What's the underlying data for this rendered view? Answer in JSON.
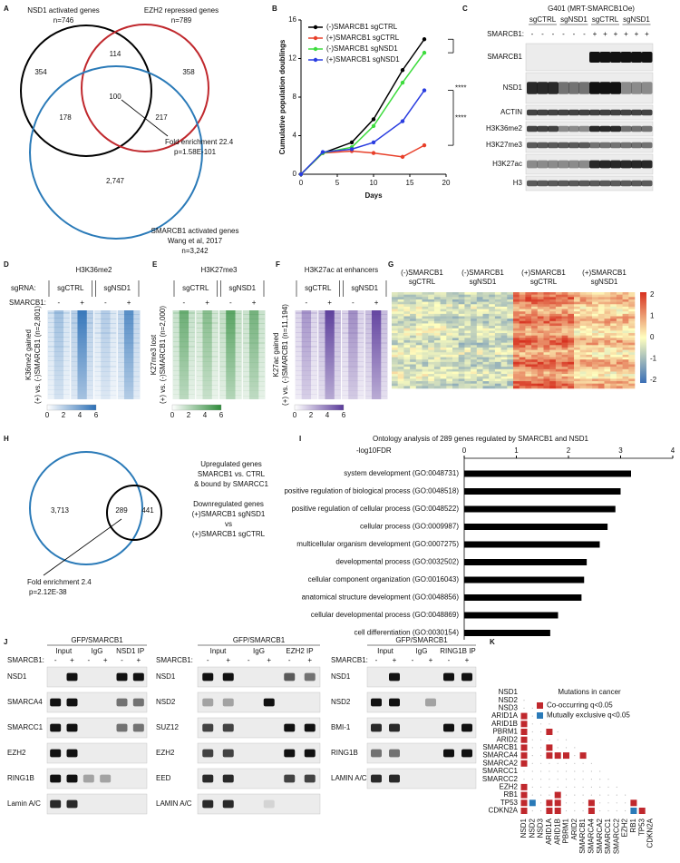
{
  "panels": {
    "A": {
      "label": "A",
      "sets": [
        {
          "name": "NSD1 activated genes",
          "n": "n=746"
        },
        {
          "name": "EZH2 repressed genes",
          "n": "n=789"
        },
        {
          "name": "SMARCB1 activated genes",
          "source": "Wang et al, 2017",
          "n": "n=3,242"
        }
      ],
      "regions": [
        "354",
        "114",
        "358",
        "100",
        "178",
        "217",
        "2,747"
      ],
      "fold": "Fold enrichment 22.4",
      "p": "p=1.58E-101"
    },
    "B": {
      "label": "B",
      "chart_data": {
        "type": "line",
        "x": [
          0,
          3,
          7,
          10,
          14,
          17
        ],
        "series": [
          {
            "name": "(-)SMARCB1 sgCTRL",
            "color": "#000000",
            "values": [
              0,
              2.2,
              3.3,
              5.7,
              10.8,
              14
            ]
          },
          {
            "name": "(+)SMARCB1 sgCTRL",
            "color": "#e8402a",
            "values": [
              0,
              2.2,
              2.4,
              2.2,
              1.8,
              3
            ]
          },
          {
            "name": "(-)SMARCB1 sgNSD1",
            "color": "#3ddc3d",
            "values": [
              0,
              2.2,
              2.8,
              5,
              9.5,
              12.6
            ]
          },
          {
            "name": "(+)SMARCB1 sgNSD1",
            "color": "#2a3de0",
            "values": [
              0,
              2.3,
              2.6,
              3.3,
              5.5,
              8.7
            ]
          }
        ],
        "xlim": [
          0,
          20
        ],
        "xticks": [
          0,
          5,
          10,
          15,
          20
        ],
        "ylim": [
          0,
          16
        ],
        "yticks": [
          0,
          4,
          8,
          12,
          16
        ],
        "xlabel": "Days",
        "ylabel": "Cumulative population doublings",
        "annotations": [
          "****",
          "****"
        ]
      }
    },
    "C": {
      "label": "C",
      "title": "G401 (MRT-SMARCB1Oe)",
      "groups": [
        "sgCTRL",
        "sgNSD1",
        "sgCTRL",
        "sgNSD1"
      ],
      "row_label": "SMARCB1:",
      "lanes": [
        "-",
        "-",
        "-",
        "-",
        "-",
        "-",
        "+",
        "+",
        "+",
        "+",
        "+",
        "+"
      ],
      "blots": [
        "SMARCB1",
        "NSD1",
        "ACTIN",
        "H3K36me2",
        "H3K27me3",
        "H3K27ac",
        "H3"
      ]
    },
    "D": {
      "label": "D",
      "title": "H3K36me2",
      "sgrna_label": "sgRNA:",
      "smarcb1_label": "SMARCB1:",
      "groups": [
        "sgCTRL",
        "sgNSD1"
      ],
      "lanes": [
        "-",
        "+",
        "-",
        "+"
      ],
      "ylabel": [
        "K36me2 gained",
        "(+) vs. (-)SMARCB1 (n=2,801)"
      ],
      "scale": [
        "0",
        "2",
        "4",
        "6"
      ]
    },
    "E": {
      "label": "E",
      "title": "H3K27me3",
      "groups": [
        "sgCTRL",
        "sgNSD1"
      ],
      "lanes": [
        "-",
        "+",
        "-",
        "+"
      ],
      "ylabel": [
        "K27me3 lost",
        "(+) vs. (-)SMARCB1 (n=2,000)"
      ],
      "scale": [
        "0",
        "2",
        "4",
        "6"
      ]
    },
    "F": {
      "label": "F",
      "title": "H3K27ac at enhancers",
      "groups": [
        "sgCTRL",
        "sgNSD1"
      ],
      "lanes": [
        "-",
        "+",
        "-",
        "+"
      ],
      "ylabel": [
        "K27ac gained",
        "(+) vs. (-)SMARCB1 (n=11,194)"
      ],
      "scale": [
        "0",
        "2",
        "4",
        "6"
      ]
    },
    "G": {
      "label": "G",
      "groups": [
        [
          "(-)SMARCB1",
          "sgCTRL"
        ],
        [
          "(-)SMARCB1",
          "sgNSD1"
        ],
        [
          "(+)SMARCB1",
          "sgCTRL"
        ],
        [
          "(+)SMARCB1",
          "sgNSD1"
        ]
      ],
      "scale": [
        "2",
        "1",
        "0",
        "-1",
        "-2"
      ]
    },
    "H": {
      "label": "H",
      "regions": [
        "3,713",
        "289",
        "441"
      ],
      "set1": [
        "Upregulated genes",
        "SMARCB1 vs. CTRL",
        "& bound by SMARCC1"
      ],
      "set2": [
        "Downregulated genes",
        "(+)SMARCB1 sgNSD1",
        "vs",
        "(+)SMARCB1 sgCTRL"
      ],
      "fold": "Fold enrichment 2.4",
      "p": "p=2.12E-38"
    },
    "I": {
      "label": "I",
      "chart_data": {
        "type": "bar",
        "orientation": "horizontal",
        "title": "Ontology analysis of 289 genes regulated by SMARCB1 and NSD1",
        "xlabel": "-log10FDR",
        "categories": [
          "system development (GO:0048731)",
          "positive regulation of biological process (GO:0048518)",
          "positive regulation of cellular process (GO:0048522)",
          "cellular process (GO:0009987)",
          "multicellular organism development (GO:0007275)",
          "developmental process (GO:0032502)",
          "cellular component organization (GO:0016043)",
          "anatomical structure development (GO:0048856)",
          "cellular developmental process (GO:0048869)",
          "cell differentiation (GO:0030154)"
        ],
        "values": [
          3.2,
          3.0,
          2.9,
          2.75,
          2.6,
          2.35,
          2.3,
          2.25,
          1.8,
          1.65
        ],
        "color": "#000000",
        "xlim": [
          0,
          4
        ],
        "xticks": [
          0,
          1,
          2,
          3,
          4
        ]
      }
    },
    "J": {
      "label": "J",
      "blots": [
        {
          "header": "GFP/SMARCB1",
          "row_label": "SMARCB1:",
          "groups": [
            "Input",
            "IgG",
            "NSD1 IP"
          ],
          "lanes": [
            "-",
            "+",
            "-",
            "+",
            "-",
            "+"
          ],
          "rows": [
            "NSD1",
            "SMARCA4",
            "SMARCC1",
            "EZH2",
            "RING1B",
            "Lamin A/C"
          ]
        },
        {
          "header": "GFP/SMARCB1",
          "row_label": "SMARCB1:",
          "groups": [
            "Input",
            "IgG",
            "EZH2 IP"
          ],
          "lanes": [
            "-",
            "+",
            "-",
            "+",
            "-",
            "+"
          ],
          "rows": [
            "NSD1",
            "NSD2",
            "SUZ12",
            "EZH2",
            "EED",
            "LAMIN A/C"
          ]
        },
        {
          "header": "GFP/SMARCB1",
          "row_label": "SMARCB1:",
          "groups": [
            "Input",
            "IgG",
            "RING1B IP"
          ],
          "lanes": [
            "-",
            "+",
            "-",
            "+",
            "-",
            "+"
          ],
          "rows": [
            "NSD1",
            "NSD2",
            "BMI-1",
            "RING1B",
            "LAMIN A/C"
          ]
        }
      ]
    },
    "K": {
      "label": "K",
      "title": "Mutations in cancer",
      "genes": [
        "NSD1",
        "NSD2",
        "NSD3",
        "ARID1A",
        "ARID1B",
        "PBRM1",
        "ARID2",
        "SMARCB1",
        "SMARCA4",
        "SMARCA2",
        "SMARCC1",
        "SMARCC2",
        "EZH2",
        "RB1",
        "TP53",
        "CDKN2A"
      ],
      "legend": [
        {
          "label": "Co-occurring q<0.05",
          "color": "#c0282d",
          "cells": [
            [
              "ARID1A",
              "NSD1"
            ],
            [
              "ARID1B",
              "NSD1"
            ],
            [
              "PBRM1",
              "NSD1"
            ],
            [
              "PBRM1",
              "ARID1A"
            ],
            [
              "ARID2",
              "NSD1"
            ],
            [
              "SMARCB1",
              "NSD1"
            ],
            [
              "SMARCB1",
              "ARID1A"
            ],
            [
              "SMARCA4",
              "NSD1"
            ],
            [
              "SMARCA4",
              "ARID1A"
            ],
            [
              "SMARCA4",
              "ARID1B"
            ],
            [
              "SMARCA4",
              "PBRM1"
            ],
            [
              "SMARCA4",
              "SMARCB1"
            ],
            [
              "SMARCA2",
              "NSD1"
            ],
            [
              "EZH2",
              "NSD1"
            ],
            [
              "RB1",
              "NSD1"
            ],
            [
              "RB1",
              "ARID1B"
            ],
            [
              "TP53",
              "NSD1"
            ],
            [
              "TP53",
              "ARID1A"
            ],
            [
              "TP53",
              "ARID1B"
            ],
            [
              "TP53",
              "SMARCA4"
            ],
            [
              "TP53",
              "RB1"
            ],
            [
              "CDKN2A",
              "NSD1"
            ],
            [
              "CDKN2A",
              "ARID1A"
            ],
            [
              "CDKN2A",
              "ARID1B"
            ],
            [
              "CDKN2A",
              "SMARCA4"
            ],
            [
              "CDKN2A",
              "TP53"
            ]
          ]
        },
        {
          "label": "Mutually exclusive q<0.05",
          "color": "#2a7ab8",
          "cells": [
            [
              "TP53",
              "NSD2"
            ],
            [
              "CDKN2A",
              "RB1"
            ]
          ]
        }
      ]
    }
  }
}
